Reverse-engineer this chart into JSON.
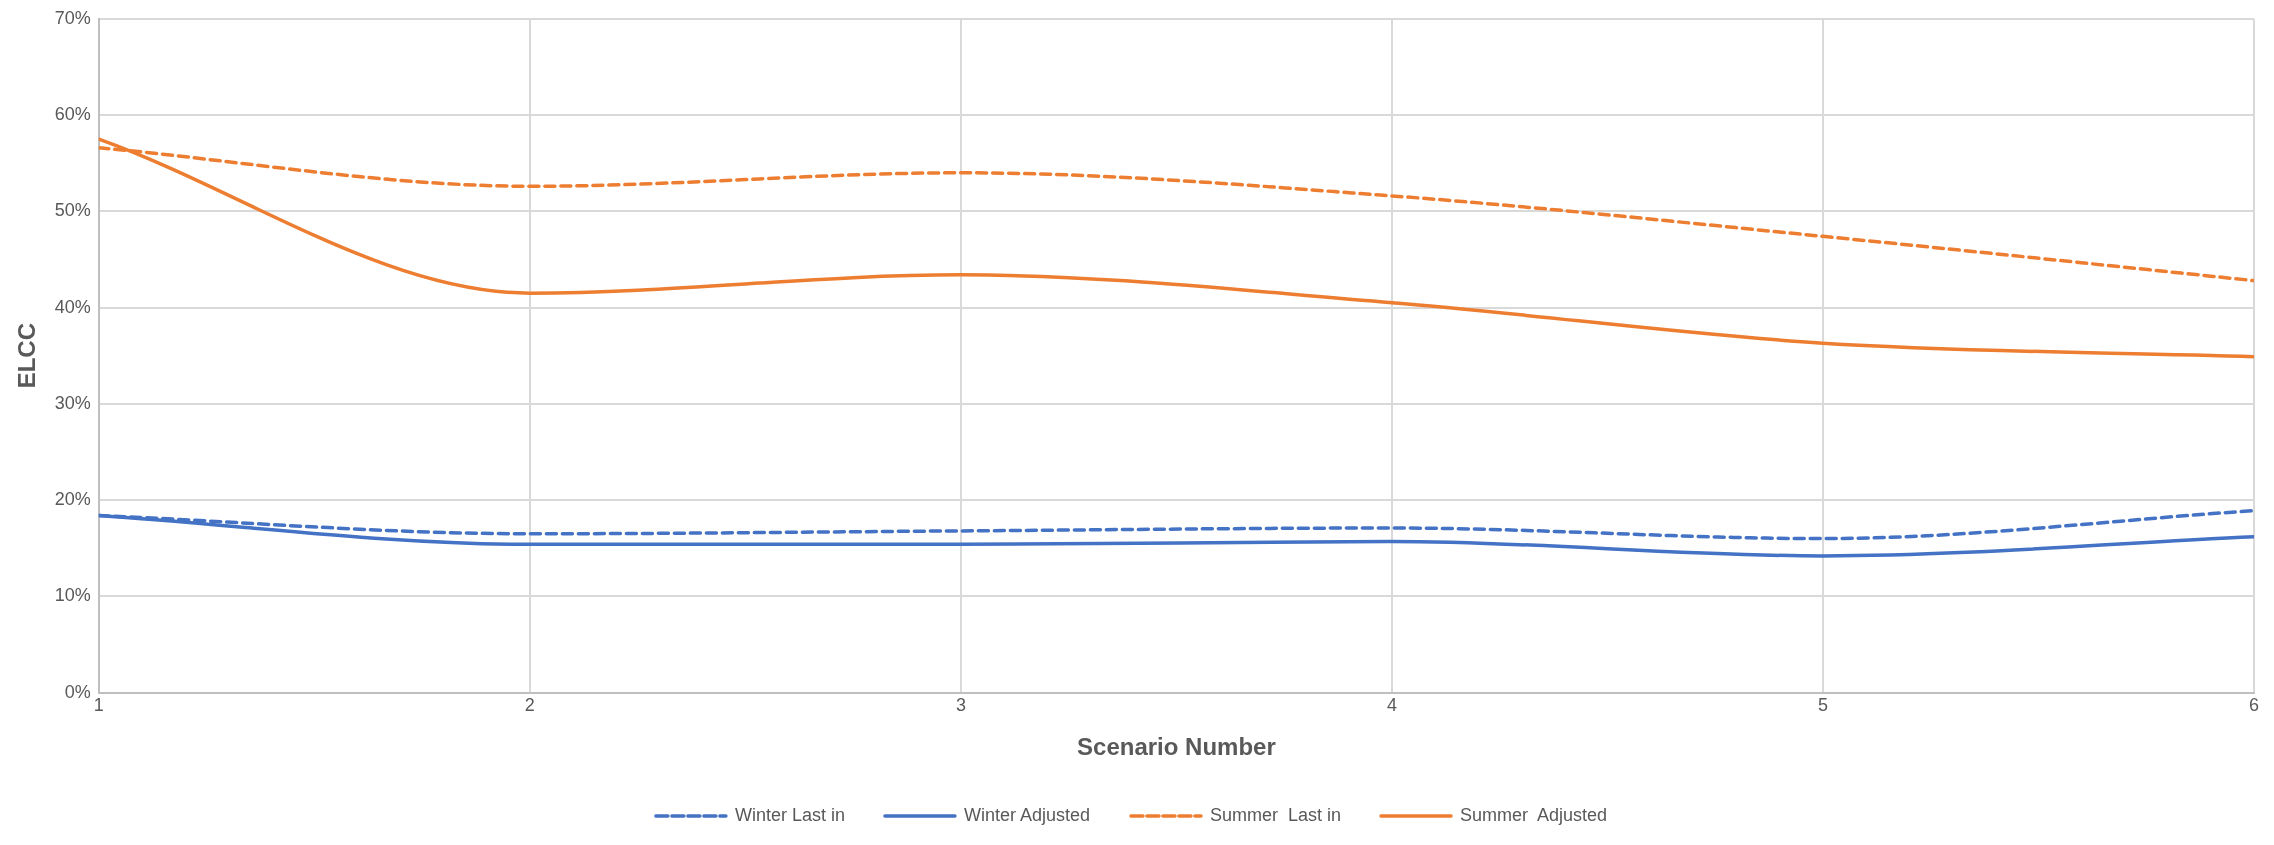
{
  "chart_data": {
    "type": "line",
    "xlabel": "Scenario Number",
    "ylabel": "ELCC",
    "x": [
      1,
      2,
      3,
      4,
      5,
      6
    ],
    "series": [
      {
        "name": "Winter Last in",
        "color": "#4472c4",
        "line_style": "dashed",
        "values": [
          18.4,
          16.5,
          16.8,
          17.1,
          16.0,
          18.9
        ]
      },
      {
        "name": "Winter Adjusted",
        "color": "#4472c4",
        "line_style": "solid",
        "values": [
          18.4,
          15.4,
          15.4,
          15.7,
          14.2,
          16.2
        ]
      },
      {
        "name": "Summer  Last in",
        "color": "#ed7d31",
        "line_style": "dashed",
        "values": [
          56.6,
          52.6,
          54.0,
          51.6,
          47.4,
          42.8
        ]
      },
      {
        "name": "Summer  Adjusted",
        "color": "#ed7d31",
        "line_style": "solid",
        "values": [
          57.5,
          41.5,
          43.4,
          40.5,
          36.3,
          34.9
        ]
      }
    ],
    "xlim": [
      1,
      6
    ],
    "xticks": [
      1,
      2,
      3,
      4,
      5,
      6
    ],
    "ylim": [
      0,
      70
    ],
    "yticks": [
      {
        "value": 0,
        "label": "0%"
      },
      {
        "value": 10,
        "label": "10%"
      },
      {
        "value": 20,
        "label": "20%"
      },
      {
        "value": 30,
        "label": "30%"
      },
      {
        "value": 40,
        "label": "40%"
      },
      {
        "value": 50,
        "label": "50%"
      },
      {
        "value": 60,
        "label": "60%"
      },
      {
        "value": 70,
        "label": "70%"
      }
    ],
    "grid": true,
    "legend": "bottom",
    "marker": "none"
  }
}
